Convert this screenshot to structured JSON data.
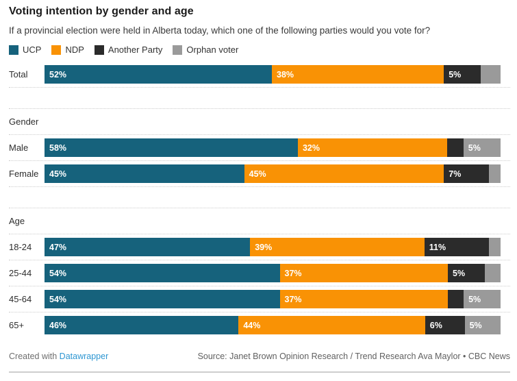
{
  "header": {
    "title": "Voting intention by gender and age",
    "subtitle": "If a provincial election were held in Alberta today, which one of the following parties would you vote for?"
  },
  "legend": {
    "items": [
      {
        "label": "UCP",
        "color": "#16627c"
      },
      {
        "label": "NDP",
        "color": "#f99205"
      },
      {
        "label": "Another Party",
        "color": "#2b2b2b"
      },
      {
        "label": "Orphan voter",
        "color": "#9a9a9a"
      }
    ]
  },
  "chart_data": {
    "type": "bar",
    "variant": "stacked-horizontal",
    "unit": "percent",
    "xlim": [
      0,
      100
    ],
    "series": [
      "UCP",
      "NDP",
      "Another Party",
      "Orphan voter"
    ],
    "series_keys": [
      "ucp",
      "ndp",
      "another-party",
      "orphan-voter"
    ],
    "series_colors": [
      "#16627c",
      "#f99205",
      "#2b2b2b",
      "#9a9a9a"
    ],
    "rows": [
      {
        "kind": "bar",
        "label": "Total",
        "values": [
          52,
          38,
          5,
          5
        ],
        "value_labels": [
          "52%",
          "38%",
          "5%",
          ""
        ]
      },
      {
        "kind": "section",
        "label": "Gender"
      },
      {
        "kind": "bar",
        "label": "Male",
        "values": [
          58,
          32,
          4,
          5
        ],
        "value_labels": [
          "58%",
          "32%",
          "",
          "5%"
        ]
      },
      {
        "kind": "bar",
        "label": "Female",
        "values": [
          45,
          45,
          7,
          3
        ],
        "value_labels": [
          "45%",
          "45%",
          "7%",
          ""
        ]
      },
      {
        "kind": "section",
        "label": "Age"
      },
      {
        "kind": "bar",
        "label": "18-24",
        "values": [
          47,
          39,
          11,
          3
        ],
        "value_labels": [
          "47%",
          "39%",
          "11%",
          ""
        ]
      },
      {
        "kind": "bar",
        "label": "25-44",
        "values": [
          54,
          37,
          5,
          4
        ],
        "value_labels": [
          "54%",
          "37%",
          "5%",
          ""
        ]
      },
      {
        "kind": "bar",
        "label": "45-64",
        "values": [
          54,
          37,
          4,
          5
        ],
        "value_labels": [
          "54%",
          "37%",
          "",
          "5%"
        ]
      },
      {
        "kind": "bar",
        "label": "65+",
        "values": [
          46,
          44,
          6,
          5
        ],
        "value_labels": [
          "46%",
          "44%",
          "6%",
          "5%"
        ]
      }
    ]
  },
  "footer": {
    "created_with_text": "Created with",
    "datawrapper_link": "Datawrapper",
    "source_text": "Source: Janet Brown Opinion Research / Trend Research Ava Maylor • CBC News"
  }
}
